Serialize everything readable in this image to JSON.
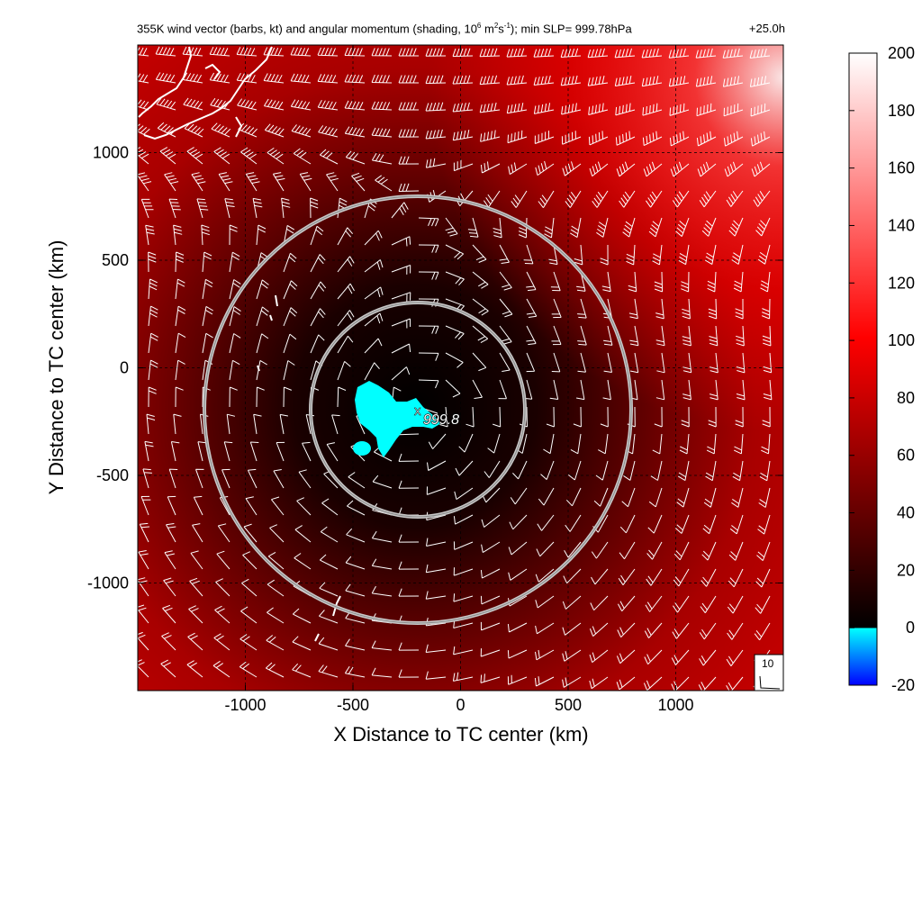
{
  "title_left": "355K wind vector (barbs, kt) and angular momentum (shading, 10",
  "title_exp1": "6",
  "title_mid1": " m",
  "title_exp2": "2",
  "title_mid2": "s",
  "title_exp3": "-1",
  "title_end": "); min SLP= 999.78hPa",
  "title_right": "+25.0h",
  "chart_data": {
    "type": "heatmap",
    "xlabel": "X Distance to TC center (km)",
    "ylabel": "Y Distance to TC center (km)",
    "xlim": [
      -1500,
      1500
    ],
    "ylim": [
      -1500,
      1500
    ],
    "xticks": [
      -1000,
      -500,
      0,
      500,
      1000
    ],
    "yticks": [
      -1000,
      -500,
      0,
      500,
      1000
    ],
    "grid": true,
    "colorbar": {
      "ticks": [
        -20,
        0,
        20,
        40,
        60,
        80,
        100,
        120,
        140,
        160,
        180,
        200
      ],
      "range": [
        -20,
        200
      ],
      "colors": [
        "#0000ff",
        "#00ffff",
        "#000000",
        "#ff0000",
        "#ffffff"
      ]
    },
    "circles_radius_km": [
      500,
      1000
    ],
    "circle_center_km": [
      -200,
      -200
    ],
    "min_slp_label": "999.8",
    "min_slp_location_km": [
      -200,
      -200
    ],
    "barb_reference_label": "10"
  }
}
